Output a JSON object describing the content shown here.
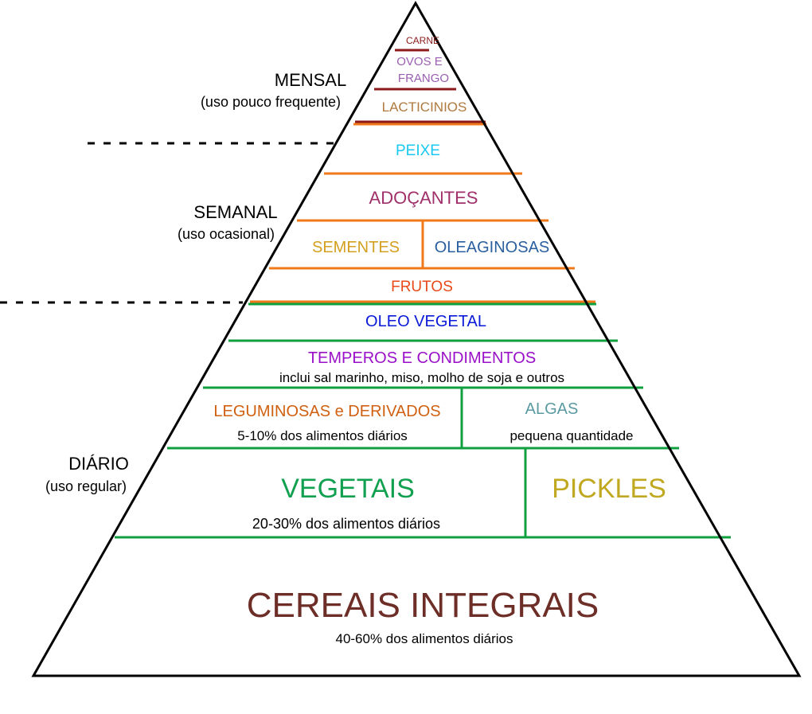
{
  "side_labels": {
    "mensal": {
      "title": "MENSAL",
      "subtitle": "(uso pouco frequente)"
    },
    "semanal": {
      "title": "SEMANAL",
      "subtitle": "(uso ocasional)"
    },
    "diario": {
      "title": "DIÁRIO",
      "subtitle": "(uso regular)"
    }
  },
  "tiers": {
    "carne": {
      "label": "CARNE",
      "color": "#8b1a1a"
    },
    "ovos_frango": {
      "label_line1": "OVOS E",
      "label_line2": "FRANGO",
      "color": "#9a5fb0"
    },
    "lacticinios": {
      "label": "LACTICINIOS",
      "color": "#b07a3e"
    },
    "peixe": {
      "label": "PEIXE",
      "color": "#18c8f0"
    },
    "adocantes": {
      "label": "ADOÇANTES",
      "color": "#a0306a"
    },
    "sementes": {
      "label": "SEMENTES",
      "color": "#d4a020"
    },
    "oleaginosas": {
      "label": "OLEAGINOSAS",
      "color": "#2a5fa0"
    },
    "frutos": {
      "label": "FRUTOS",
      "color": "#e84a1a"
    },
    "oleo_vegetal": {
      "label": "OLEO VEGETAL",
      "color": "#0a1ad8"
    },
    "temperos": {
      "label": "TEMPEROS E CONDIMENTOS",
      "note": "inclui sal marinho, miso, molho de soja e outros",
      "color": "#9a10c8"
    },
    "leguminosas": {
      "label": "LEGUMINOSAS e DERIVADOS",
      "note": "5-10% dos alimentos diários",
      "color": "#d06010"
    },
    "algas": {
      "label": "ALGAS",
      "note": "pequena quantidade",
      "color": "#5a9aa0"
    },
    "vegetais": {
      "label": "VEGETAIS",
      "note": "20-30% dos alimentos diários",
      "color": "#10a050"
    },
    "pickles": {
      "label": "PICKLES",
      "color": "#c0a820"
    },
    "cereais": {
      "label": "CEREAIS INTEGRAIS",
      "note": "40-60% dos alimentos diários",
      "color": "#6e2e28"
    }
  },
  "line_colors": {
    "mensal": "#8b1a1a",
    "semanal": "#f07a1a",
    "diario": "#10a040"
  }
}
